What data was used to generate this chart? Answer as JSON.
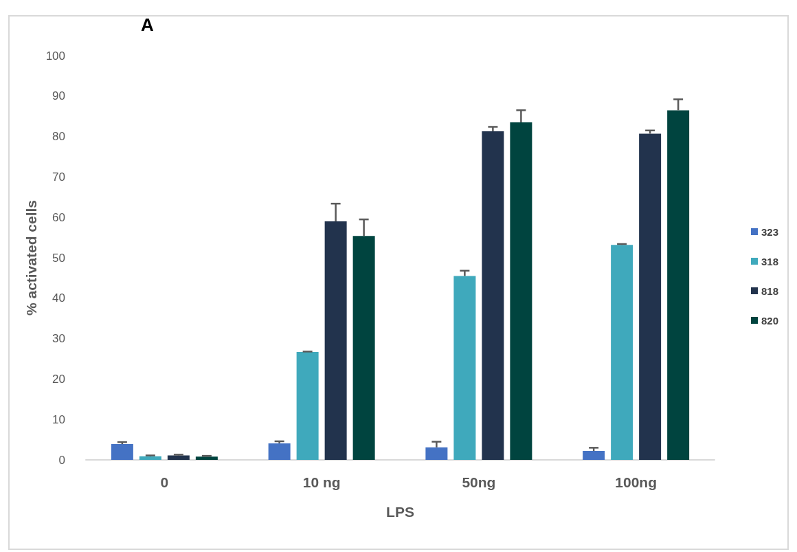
{
  "chart_data": {
    "type": "bar",
    "title": "A",
    "xlabel": "LPS",
    "ylabel": "% activated cells",
    "categories": [
      "0",
      "10 ng",
      "50ng",
      "100ng"
    ],
    "series": [
      {
        "name": "323",
        "color": "#4472c4",
        "values": [
          3.9,
          4.1,
          3.1,
          2.2
        ],
        "errors": [
          [
            3.9,
            4.4
          ],
          [
            4.1,
            4.6
          ],
          [
            3.1,
            4.5
          ],
          [
            2.2,
            3.0
          ]
        ]
      },
      {
        "name": "318",
        "color": "#3fa9bc",
        "values": [
          0.9,
          26.7,
          45.5,
          53.2
        ],
        "errors": [
          [
            0.9,
            1.1
          ],
          [
            26.7,
            26.8
          ],
          [
            45.5,
            46.8
          ],
          [
            53.2,
            53.4
          ]
        ]
      },
      {
        "name": "818",
        "color": "#22334d",
        "values": [
          1.1,
          59.0,
          81.3,
          80.7
        ],
        "errors": [
          [
            1.1,
            1.3
          ],
          [
            59.0,
            63.4
          ],
          [
            81.3,
            82.4
          ],
          [
            80.7,
            81.5
          ]
        ]
      },
      {
        "name": "820",
        "color": "#00443f",
        "values": [
          0.8,
          55.4,
          83.5,
          86.5
        ],
        "errors": [
          [
            0.8,
            1.0
          ],
          [
            55.4,
            59.5
          ],
          [
            83.5,
            86.5
          ],
          [
            86.5,
            89.2
          ]
        ]
      }
    ],
    "ylim": [
      0,
      100
    ],
    "yticks": [
      0,
      10,
      20,
      30,
      40,
      50,
      60,
      70,
      80,
      90,
      100
    ],
    "grid": false,
    "legend": "right"
  }
}
